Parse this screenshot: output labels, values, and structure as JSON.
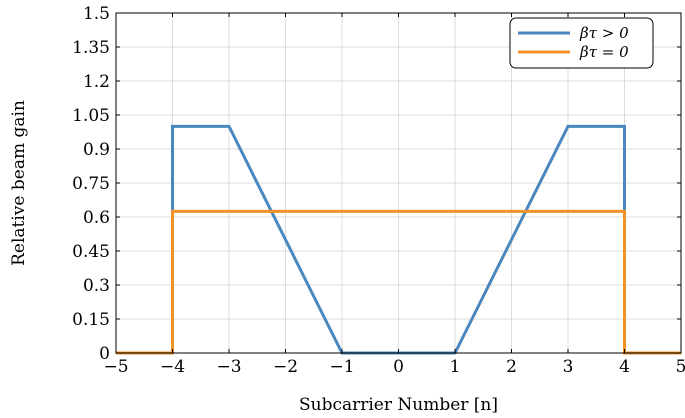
{
  "chart_data": {
    "type": "line",
    "xlabel": "Subcarrier Number [n]",
    "ylabel": "Relative beam gain",
    "xlim": [
      -5,
      5
    ],
    "ylim": [
      0,
      1.5
    ],
    "xticks": [
      -5,
      -4,
      -3,
      -2,
      -1,
      0,
      1,
      2,
      3,
      4,
      5
    ],
    "xtick_labels": [
      "−5",
      "−4",
      "−3",
      "−2",
      "−1",
      "0",
      "1",
      "2",
      "3",
      "4",
      "5"
    ],
    "yticks": [
      0,
      0.15,
      0.3,
      0.45,
      0.6,
      0.75,
      0.9,
      1.05,
      1.2,
      1.35,
      1.5
    ],
    "ytick_labels": [
      "0",
      "0.15",
      "0.3",
      "0.45",
      "0.6",
      "0.75",
      "0.9",
      "1.05",
      "1.2",
      "1.35",
      "1.5"
    ],
    "grid": true,
    "legend_position": "top-right",
    "series": [
      {
        "name": "βτ > 0",
        "color": "#4a87bf",
        "x": [
          -5,
          -4,
          -4,
          -3,
          -1,
          1,
          3,
          4,
          4,
          5
        ],
        "y": [
          0,
          0,
          1.0,
          1.0,
          0,
          0,
          1.0,
          1.0,
          0,
          0
        ]
      },
      {
        "name": "βτ = 0",
        "color": "#f0912a",
        "x": [
          -5,
          -4,
          -4,
          4,
          4,
          5
        ],
        "y": [
          0,
          0,
          0.625,
          0.625,
          0,
          0
        ]
      }
    ]
  }
}
